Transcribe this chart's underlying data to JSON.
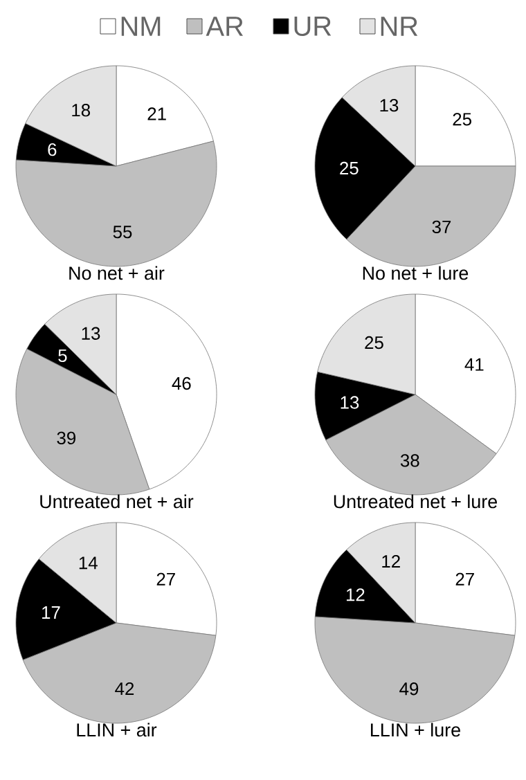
{
  "chart_data": [
    {
      "type": "pie",
      "title": "No net + air",
      "categories": [
        "NM",
        "AR",
        "UR",
        "NR"
      ],
      "values": [
        21,
        55,
        6,
        18
      ],
      "colors": [
        "#ffffff",
        "#bfbfbf",
        "#000000",
        "#e3e3e3"
      ],
      "data_labels": true,
      "legend": "top"
    },
    {
      "type": "pie",
      "title": "No net + lure",
      "categories": [
        null,
        null,
        null,
        null
      ],
      "values": [
        25,
        37,
        25,
        13
      ],
      "colors": [
        "#ffffff",
        "#bfbfbf",
        "#000000",
        "#e3e3e3"
      ],
      "data_labels": true
    },
    {
      "type": "pie",
      "title": "Untreated net + air",
      "categories": [
        null,
        null,
        null,
        null
      ],
      "values": [
        46,
        39,
        5,
        13
      ],
      "colors": [
        "#ffffff",
        "#bfbfbf",
        "#000000",
        "#e3e3e3"
      ],
      "data_labels": true
    },
    {
      "type": "pie",
      "title": "Untreated net + lure",
      "categories": [
        null,
        null,
        null,
        null
      ],
      "values": [
        41,
        38,
        13,
        25
      ],
      "colors": [
        "#ffffff",
        "#bfbfbf",
        "#000000",
        "#e3e3e3"
      ],
      "data_labels": true
    },
    {
      "type": "pie",
      "title": "LLIN + air",
      "categories": [
        null,
        null,
        null,
        null
      ],
      "values": [
        27,
        42,
        17,
        14
      ],
      "colors": [
        "#ffffff",
        "#bfbfbf",
        "#000000",
        "#e3e3e3"
      ],
      "data_labels": true
    },
    {
      "type": "pie",
      "title": "LLIN + lure",
      "categories": [
        null,
        null,
        null,
        null
      ],
      "values": [
        27,
        49,
        12,
        12
      ],
      "colors": [
        "#ffffff",
        "#bfbfbf",
        "#000000",
        "#e3e3e3"
      ],
      "data_labels": true
    }
  ]
}
